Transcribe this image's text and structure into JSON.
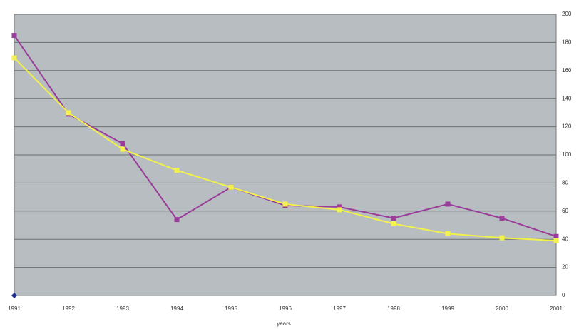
{
  "chart_data": {
    "type": "line",
    "x_label": "years",
    "categories": [
      "1991",
      "1992",
      "1993",
      "1994",
      "1995",
      "1996",
      "1997",
      "1998",
      "1999",
      "2000",
      "2001"
    ],
    "series": [
      {
        "color": "#9a3c9a",
        "marker": "square",
        "values": [
          185,
          129,
          108,
          54,
          77,
          64,
          63,
          55,
          65,
          55,
          42
        ]
      },
      {
        "color": "#f2f24a",
        "marker": "square",
        "values": [
          169,
          130,
          104,
          89,
          77,
          65,
          61,
          51,
          44,
          41,
          39
        ]
      },
      {
        "color": "#1f2f8f",
        "marker": "diamond",
        "values": [
          0,
          null,
          null,
          null,
          null,
          null,
          null,
          null,
          null,
          null,
          null
        ]
      }
    ],
    "ylim": [
      0,
      200
    ],
    "yticks": [
      0,
      20,
      40,
      60,
      80,
      100,
      120,
      140,
      160,
      180,
      200
    ],
    "y_axis_side": "right",
    "grid": true,
    "plot_background": "#b7bdc0"
  }
}
